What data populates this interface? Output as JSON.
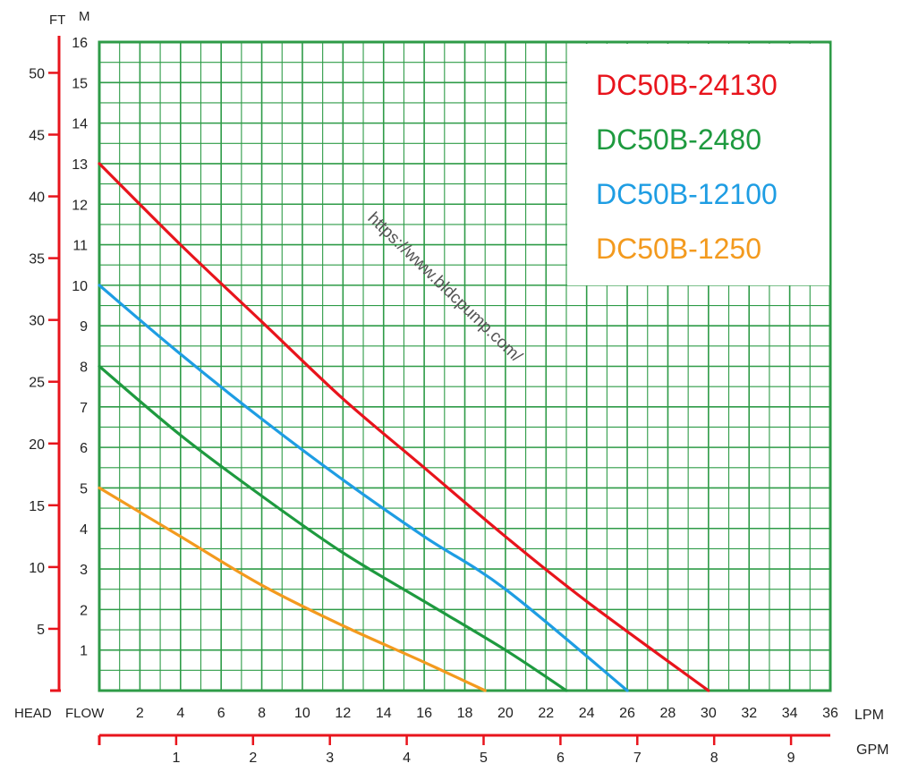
{
  "chart_data": {
    "type": "line",
    "title": "",
    "xlabel": "LPM",
    "ylabel": "M",
    "xlim": [
      0,
      36
    ],
    "ylim": [
      0,
      16
    ],
    "grid": true,
    "legend_position": "top-right",
    "x_ticks": [
      "2",
      "4",
      "6",
      "8",
      "10",
      "12",
      "14",
      "16",
      "18",
      "20",
      "22",
      "24",
      "26",
      "28",
      "30",
      "32",
      "34",
      "36"
    ],
    "y_ticks": [
      "1",
      "2",
      "3",
      "4",
      "5",
      "6",
      "7",
      "8",
      "9",
      "10",
      "11",
      "12",
      "13",
      "14",
      "15",
      "16"
    ],
    "axis_labels": {
      "ft": "FT",
      "m": "M",
      "head": "HEAD",
      "flow": "FLOW",
      "lpm": "LPM",
      "gpm": "GPM"
    },
    "ft_axis": {
      "ticks": [
        "5",
        "10",
        "15",
        "20",
        "25",
        "30",
        "35",
        "40",
        "45",
        "50"
      ],
      "values": [
        5,
        10,
        15,
        20,
        25,
        30,
        35,
        40,
        45,
        50
      ]
    },
    "gpm_axis": {
      "ticks": [
        "1",
        "2",
        "3",
        "4",
        "5",
        "6",
        "7",
        "8",
        "9"
      ],
      "values": [
        1,
        2,
        3,
        4,
        5,
        6,
        7,
        8,
        9
      ],
      "lpm_per_gpm": 3.785
    },
    "series": [
      {
        "name": "DC50B-24130",
        "color": "#e8141c",
        "x": [
          0,
          4,
          8,
          12,
          16,
          20,
          24,
          30
        ],
        "y": [
          13,
          11,
          9.1,
          7.2,
          5.5,
          3.8,
          2.2,
          0
        ]
      },
      {
        "name": "DC50B-2480",
        "color": "#1e9a3f",
        "x": [
          0,
          4,
          8,
          12,
          16,
          20,
          23
        ],
        "y": [
          8,
          6.3,
          4.8,
          3.4,
          2.2,
          1.0,
          0
        ]
      },
      {
        "name": "DC50B-12100",
        "color": "#1e9de3",
        "x": [
          0,
          4,
          8,
          12,
          16,
          20,
          26
        ],
        "y": [
          10,
          8.3,
          6.7,
          5.2,
          3.8,
          2.5,
          0
        ]
      },
      {
        "name": "DC50B-1250",
        "color": "#f39a1e",
        "x": [
          0,
          4,
          8,
          12,
          16,
          19
        ],
        "y": [
          5,
          3.8,
          2.6,
          1.6,
          0.7,
          0
        ]
      }
    ],
    "watermark": "https://www.bldcpump.com/",
    "colors": {
      "grid": "#2e9b47",
      "frame": "#2e9b47",
      "axis_red": "#e8141c",
      "text": "#222222"
    }
  }
}
